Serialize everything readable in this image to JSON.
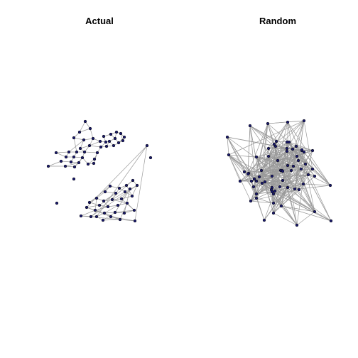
{
  "panels": {
    "left": {
      "title": "Actual"
    },
    "right": {
      "title": "Random"
    }
  },
  "colors": {
    "node_fill": "#1a1a6e",
    "node_stroke": "#000000",
    "edge": "#9a9a9a",
    "background": "#ffffff"
  }
}
